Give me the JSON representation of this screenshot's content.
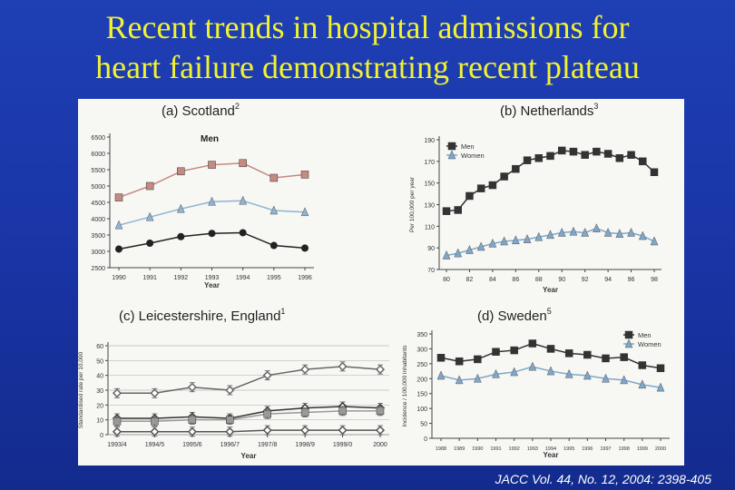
{
  "slide": {
    "title_line1": "Recent trends in hospital admissions for",
    "title_line2": "heart failure demonstrating recent plateau",
    "citation": "JACC Vol. 44, No. 12, 2004: 2398-405"
  },
  "chart_data": [
    {
      "id": "a",
      "type": "line",
      "title": "(a) Scotland",
      "superscript": "2",
      "subtitle": "Men",
      "xlabel": "Year",
      "ylabel": "",
      "categories": [
        "1990",
        "1991",
        "1992",
        "1993",
        "1994",
        "1995",
        "1996"
      ],
      "yticks": [
        2500,
        3000,
        3500,
        4000,
        4500,
        5000,
        5500,
        6000,
        6500
      ],
      "ylim": [
        2500,
        6500
      ],
      "grid": false,
      "series": [
        {
          "values": [
            4650,
            5000,
            5450,
            5650,
            5700,
            5250,
            5350
          ],
          "marker": "square",
          "color": "#c58a80"
        },
        {
          "values": [
            3800,
            4050,
            4300,
            4520,
            4550,
            4250,
            4200
          ],
          "marker": "triangle",
          "color": "#8fb3d0"
        },
        {
          "values": [
            3070,
            3250,
            3450,
            3550,
            3570,
            3180,
            3100
          ],
          "marker": "circle",
          "color": "#222222"
        }
      ]
    },
    {
      "id": "b",
      "type": "line",
      "title": "(b) Netherlands",
      "superscript": "3",
      "xlabel": "Year",
      "ylabel": "Per 100,000 per year",
      "x": [
        80,
        81,
        82,
        83,
        84,
        85,
        86,
        87,
        88,
        89,
        90,
        91,
        92,
        93,
        94,
        95,
        96,
        97,
        98
      ],
      "xticks": [
        "80",
        "82",
        "84",
        "86",
        "88",
        "90",
        "92",
        "94",
        "96",
        "98"
      ],
      "yticks": [
        70,
        90,
        110,
        130,
        150,
        170,
        190
      ],
      "ylim": [
        70,
        190
      ],
      "grid": false,
      "legend": {
        "position": "top-left",
        "items": [
          "Men",
          "Women"
        ]
      },
      "series": [
        {
          "name": "Men",
          "values": [
            124,
            125,
            138,
            145,
            148,
            156,
            163,
            171,
            173,
            175,
            180,
            179,
            176,
            179,
            177,
            173,
            176,
            170,
            160
          ],
          "marker": "square",
          "color": "#333333"
        },
        {
          "name": "Women",
          "values": [
            83,
            85,
            88,
            91,
            94,
            96,
            97,
            98,
            100,
            102,
            104,
            105,
            104,
            108,
            104,
            103,
            104,
            101,
            96
          ],
          "marker": "triangle",
          "color": "#7fa7c9"
        }
      ]
    },
    {
      "id": "c",
      "type": "line",
      "title": "(c) Leicestershire, England",
      "superscript": "1",
      "xlabel": "Year",
      "ylabel": "Standardised rate per 10,000",
      "categories": [
        "1993/4",
        "1994/5",
        "1995/6",
        "1996/7",
        "1997/8",
        "1998/9",
        "1999/0",
        "2000"
      ],
      "yticks": [
        0,
        10,
        20,
        30,
        40,
        50,
        60
      ],
      "ylim": [
        0,
        60
      ],
      "grid": true,
      "series": [
        {
          "values": [
            28,
            28,
            32,
            30,
            40,
            44,
            46,
            44
          ],
          "marker": "diamond",
          "color": "#666666"
        },
        {
          "values": [
            11,
            11,
            12,
            11,
            16,
            18,
            19,
            18
          ],
          "marker": "diamond",
          "color": "#333333"
        },
        {
          "values": [
            9,
            9,
            10,
            10,
            14,
            15,
            16,
            16
          ],
          "marker": "square",
          "color": "#999999"
        },
        {
          "values": [
            2,
            2,
            2,
            2,
            3,
            3,
            3,
            3
          ],
          "marker": "diamond",
          "color": "#555555"
        }
      ]
    },
    {
      "id": "d",
      "type": "line",
      "title": "(d) Sweden",
      "superscript": "5",
      "xlabel": "Year",
      "ylabel": "Incidence / 100,000 inhabitants",
      "categories": [
        "1988",
        "1989",
        "1990",
        "1991",
        "1992",
        "1993",
        "1994",
        "1995",
        "1996",
        "1997",
        "1998",
        "1999",
        "2000"
      ],
      "yticks": [
        0,
        50,
        100,
        150,
        200,
        250,
        300,
        350
      ],
      "ylim": [
        0,
        350
      ],
      "grid": false,
      "legend": {
        "position": "top-right",
        "items": [
          "Men",
          "Women"
        ]
      },
      "series": [
        {
          "name": "Men",
          "values": [
            270,
            258,
            265,
            290,
            295,
            318,
            300,
            285,
            280,
            268,
            272,
            245,
            235
          ],
          "marker": "square",
          "color": "#333333"
        },
        {
          "name": "Women",
          "values": [
            210,
            195,
            200,
            215,
            222,
            240,
            225,
            215,
            210,
            200,
            195,
            180,
            170
          ],
          "marker": "triangle",
          "color": "#7fa7c9"
        }
      ]
    }
  ]
}
